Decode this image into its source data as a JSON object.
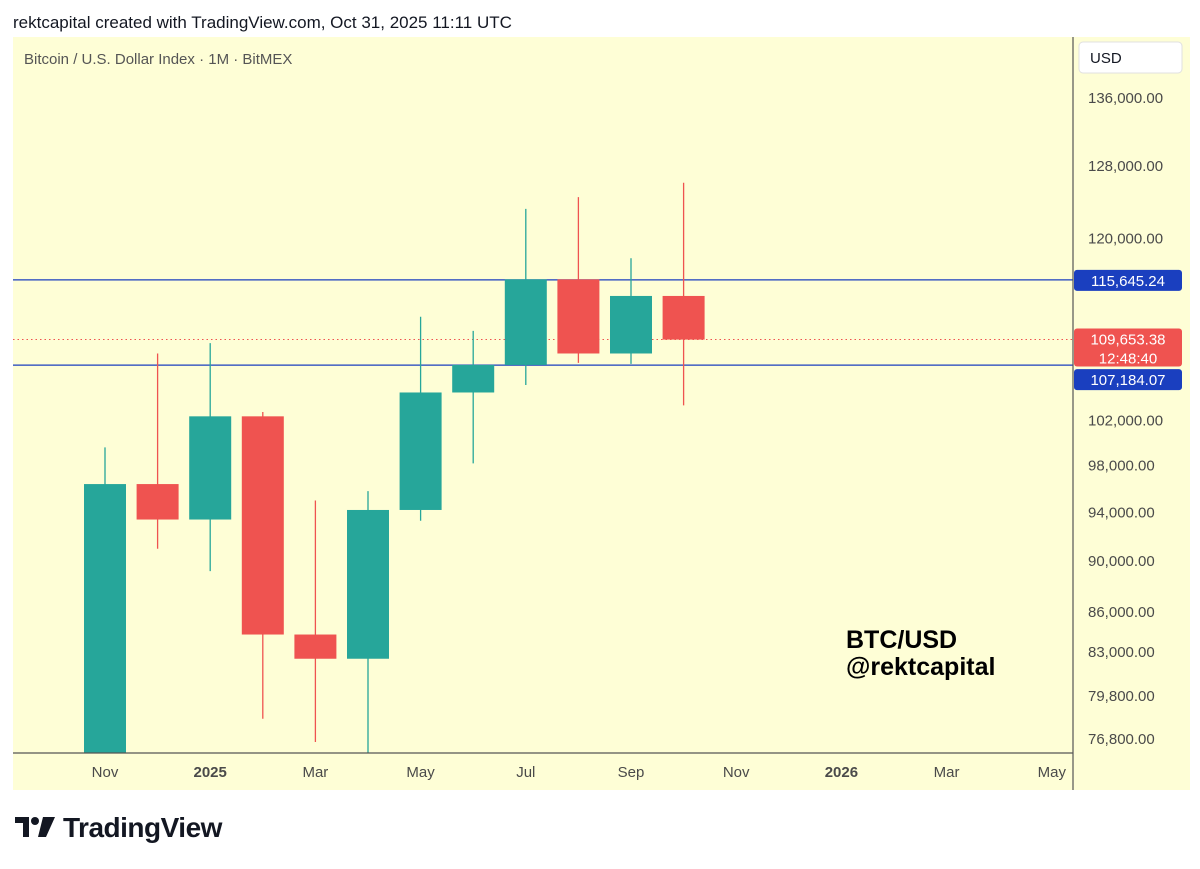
{
  "header": {
    "attribution": "rektcapital created with TradingView.com, Oct 31, 2025 11:11 UTC"
  },
  "chart_title": "Bitcoin / U.S. Dollar Index · 1M · BitMEX",
  "currency_button": "USD",
  "watermark": {
    "line1": "BTC/USD",
    "line2": "@rektcapital"
  },
  "logo": {
    "text": "TradingView"
  },
  "colors": {
    "background": "#fefed6",
    "up": "#26a69a",
    "down": "#ef5350",
    "level_line": "#1a3fbf",
    "last_price": "#ef5350"
  },
  "chart_data": {
    "type": "candlestick",
    "title": "Bitcoin / U.S. Dollar Index · 1M · BitMEX",
    "y_scale": "log",
    "ylim": [
      75500,
      142000
    ],
    "grid": false,
    "y_ticks": [
      "136,000.00",
      "128,000.00",
      "120,000.00",
      "102,000.00",
      "98,000.00",
      "94,000.00",
      "90,000.00",
      "86,000.00",
      "83,000.00",
      "79,800.00",
      "76,800.00"
    ],
    "x_ticks": [
      {
        "label": "Nov",
        "month": "2024-11",
        "bold": false
      },
      {
        "label": "2025",
        "month": "2025-01",
        "bold": true
      },
      {
        "label": "Mar",
        "month": "2025-03",
        "bold": false
      },
      {
        "label": "May",
        "month": "2025-05",
        "bold": false
      },
      {
        "label": "Jul",
        "month": "2025-07",
        "bold": false
      },
      {
        "label": "Sep",
        "month": "2025-09",
        "bold": false
      },
      {
        "label": "Nov",
        "month": "2025-11",
        "bold": false
      },
      {
        "label": "2026",
        "month": "2026-01",
        "bold": true
      },
      {
        "label": "Mar",
        "month": "2026-03",
        "bold": false
      },
      {
        "label": "May",
        "month": "2026-05",
        "bold": false
      }
    ],
    "candles": [
      {
        "month": "2024-11",
        "open": 70200,
        "high": 99600,
        "low": 66800,
        "close": 96400
      },
      {
        "month": "2024-12",
        "open": 96400,
        "high": 108300,
        "low": 91000,
        "close": 93400
      },
      {
        "month": "2025-01",
        "open": 93400,
        "high": 109300,
        "low": 89200,
        "close": 102400
      },
      {
        "month": "2025-02",
        "open": 102400,
        "high": 102800,
        "low": 78200,
        "close": 84300
      },
      {
        "month": "2025-03",
        "open": 84300,
        "high": 95000,
        "low": 76600,
        "close": 82500
      },
      {
        "month": "2025-04",
        "open": 82500,
        "high": 95800,
        "low": 74500,
        "close": 94200
      },
      {
        "month": "2025-05",
        "open": 94200,
        "high": 111900,
        "low": 93300,
        "close": 104600
      },
      {
        "month": "2025-06",
        "open": 104600,
        "high": 110500,
        "low": 98200,
        "close": 107200
      },
      {
        "month": "2025-07",
        "open": 107200,
        "high": 123200,
        "low": 105300,
        "close": 115700
      },
      {
        "month": "2025-08",
        "open": 115700,
        "high": 124500,
        "low": 107400,
        "close": 108300
      },
      {
        "month": "2025-09",
        "open": 108300,
        "high": 117900,
        "low": 107300,
        "close": 114000
      },
      {
        "month": "2025-10",
        "open": 114000,
        "high": 126100,
        "low": 103400,
        "close": 109653.38
      }
    ],
    "levels": [
      {
        "value": 115645.24,
        "label": "115,645.24"
      },
      {
        "value": 107184.07,
        "label": "107,184.07"
      }
    ],
    "last_price": {
      "value": 109653.38,
      "label": "109,653.38",
      "countdown": "12:48:40"
    }
  }
}
